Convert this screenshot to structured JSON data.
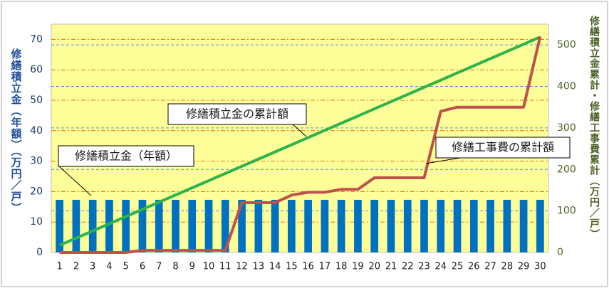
{
  "chart_data": {
    "type": "bar",
    "categories": [
      "1",
      "2",
      "3",
      "4",
      "5",
      "6",
      "7",
      "8",
      "9",
      "10",
      "11",
      "12",
      "13",
      "14",
      "15",
      "16",
      "17",
      "18",
      "19",
      "20",
      "21",
      "22",
      "23",
      "24",
      "25",
      "26",
      "27",
      "28",
      "29",
      "30"
    ],
    "ylabel": "修繕積立金（年額）（万円／戸）",
    "y2label": "修繕積立金累計・修繕工事費累計（万円／戸）",
    "ylim": [
      0,
      75
    ],
    "yticks": [
      0,
      10,
      20,
      30,
      40,
      50,
      60,
      70
    ],
    "y2lim": [
      0,
      550
    ],
    "y2ticks": [
      0,
      100,
      200,
      300,
      400,
      500
    ],
    "grid": true,
    "series": [
      {
        "name": "修繕積立金（年額）",
        "type": "bar",
        "color": "#0070c0",
        "axis": "y",
        "values": [
          17.3,
          17.3,
          17.3,
          17.3,
          17.3,
          17.3,
          17.3,
          17.3,
          17.3,
          17.3,
          17.3,
          17.3,
          17.3,
          17.3,
          17.3,
          17.3,
          17.3,
          17.3,
          17.3,
          17.3,
          17.3,
          17.3,
          17.3,
          17.3,
          17.3,
          17.3,
          17.3,
          17.3,
          17.3,
          17.3
        ]
      },
      {
        "name": "修繕積立金の累計額",
        "type": "line",
        "color": "#2db34a",
        "axis": "y2",
        "values": [
          17.3,
          34.6,
          51.9,
          69.2,
          86.5,
          103.8,
          121.1,
          138.4,
          155.7,
          173,
          190.3,
          207.6,
          224.9,
          242.2,
          259.5,
          276.8,
          294.1,
          311.4,
          328.7,
          346,
          363.3,
          380.6,
          397.9,
          415.2,
          432.5,
          449.8,
          467.1,
          484.4,
          501.7,
          519
        ]
      },
      {
        "name": "修繕工事費の累計額",
        "type": "line",
        "color": "#c0504d",
        "axis": "y2",
        "values": [
          0,
          0,
          0,
          0,
          0,
          5,
          5,
          5,
          5,
          5,
          5,
          120,
          120,
          120,
          138,
          145,
          145,
          152,
          152,
          180,
          180,
          180,
          180,
          340,
          350,
          350,
          350,
          350,
          350,
          520
        ]
      }
    ]
  }
}
